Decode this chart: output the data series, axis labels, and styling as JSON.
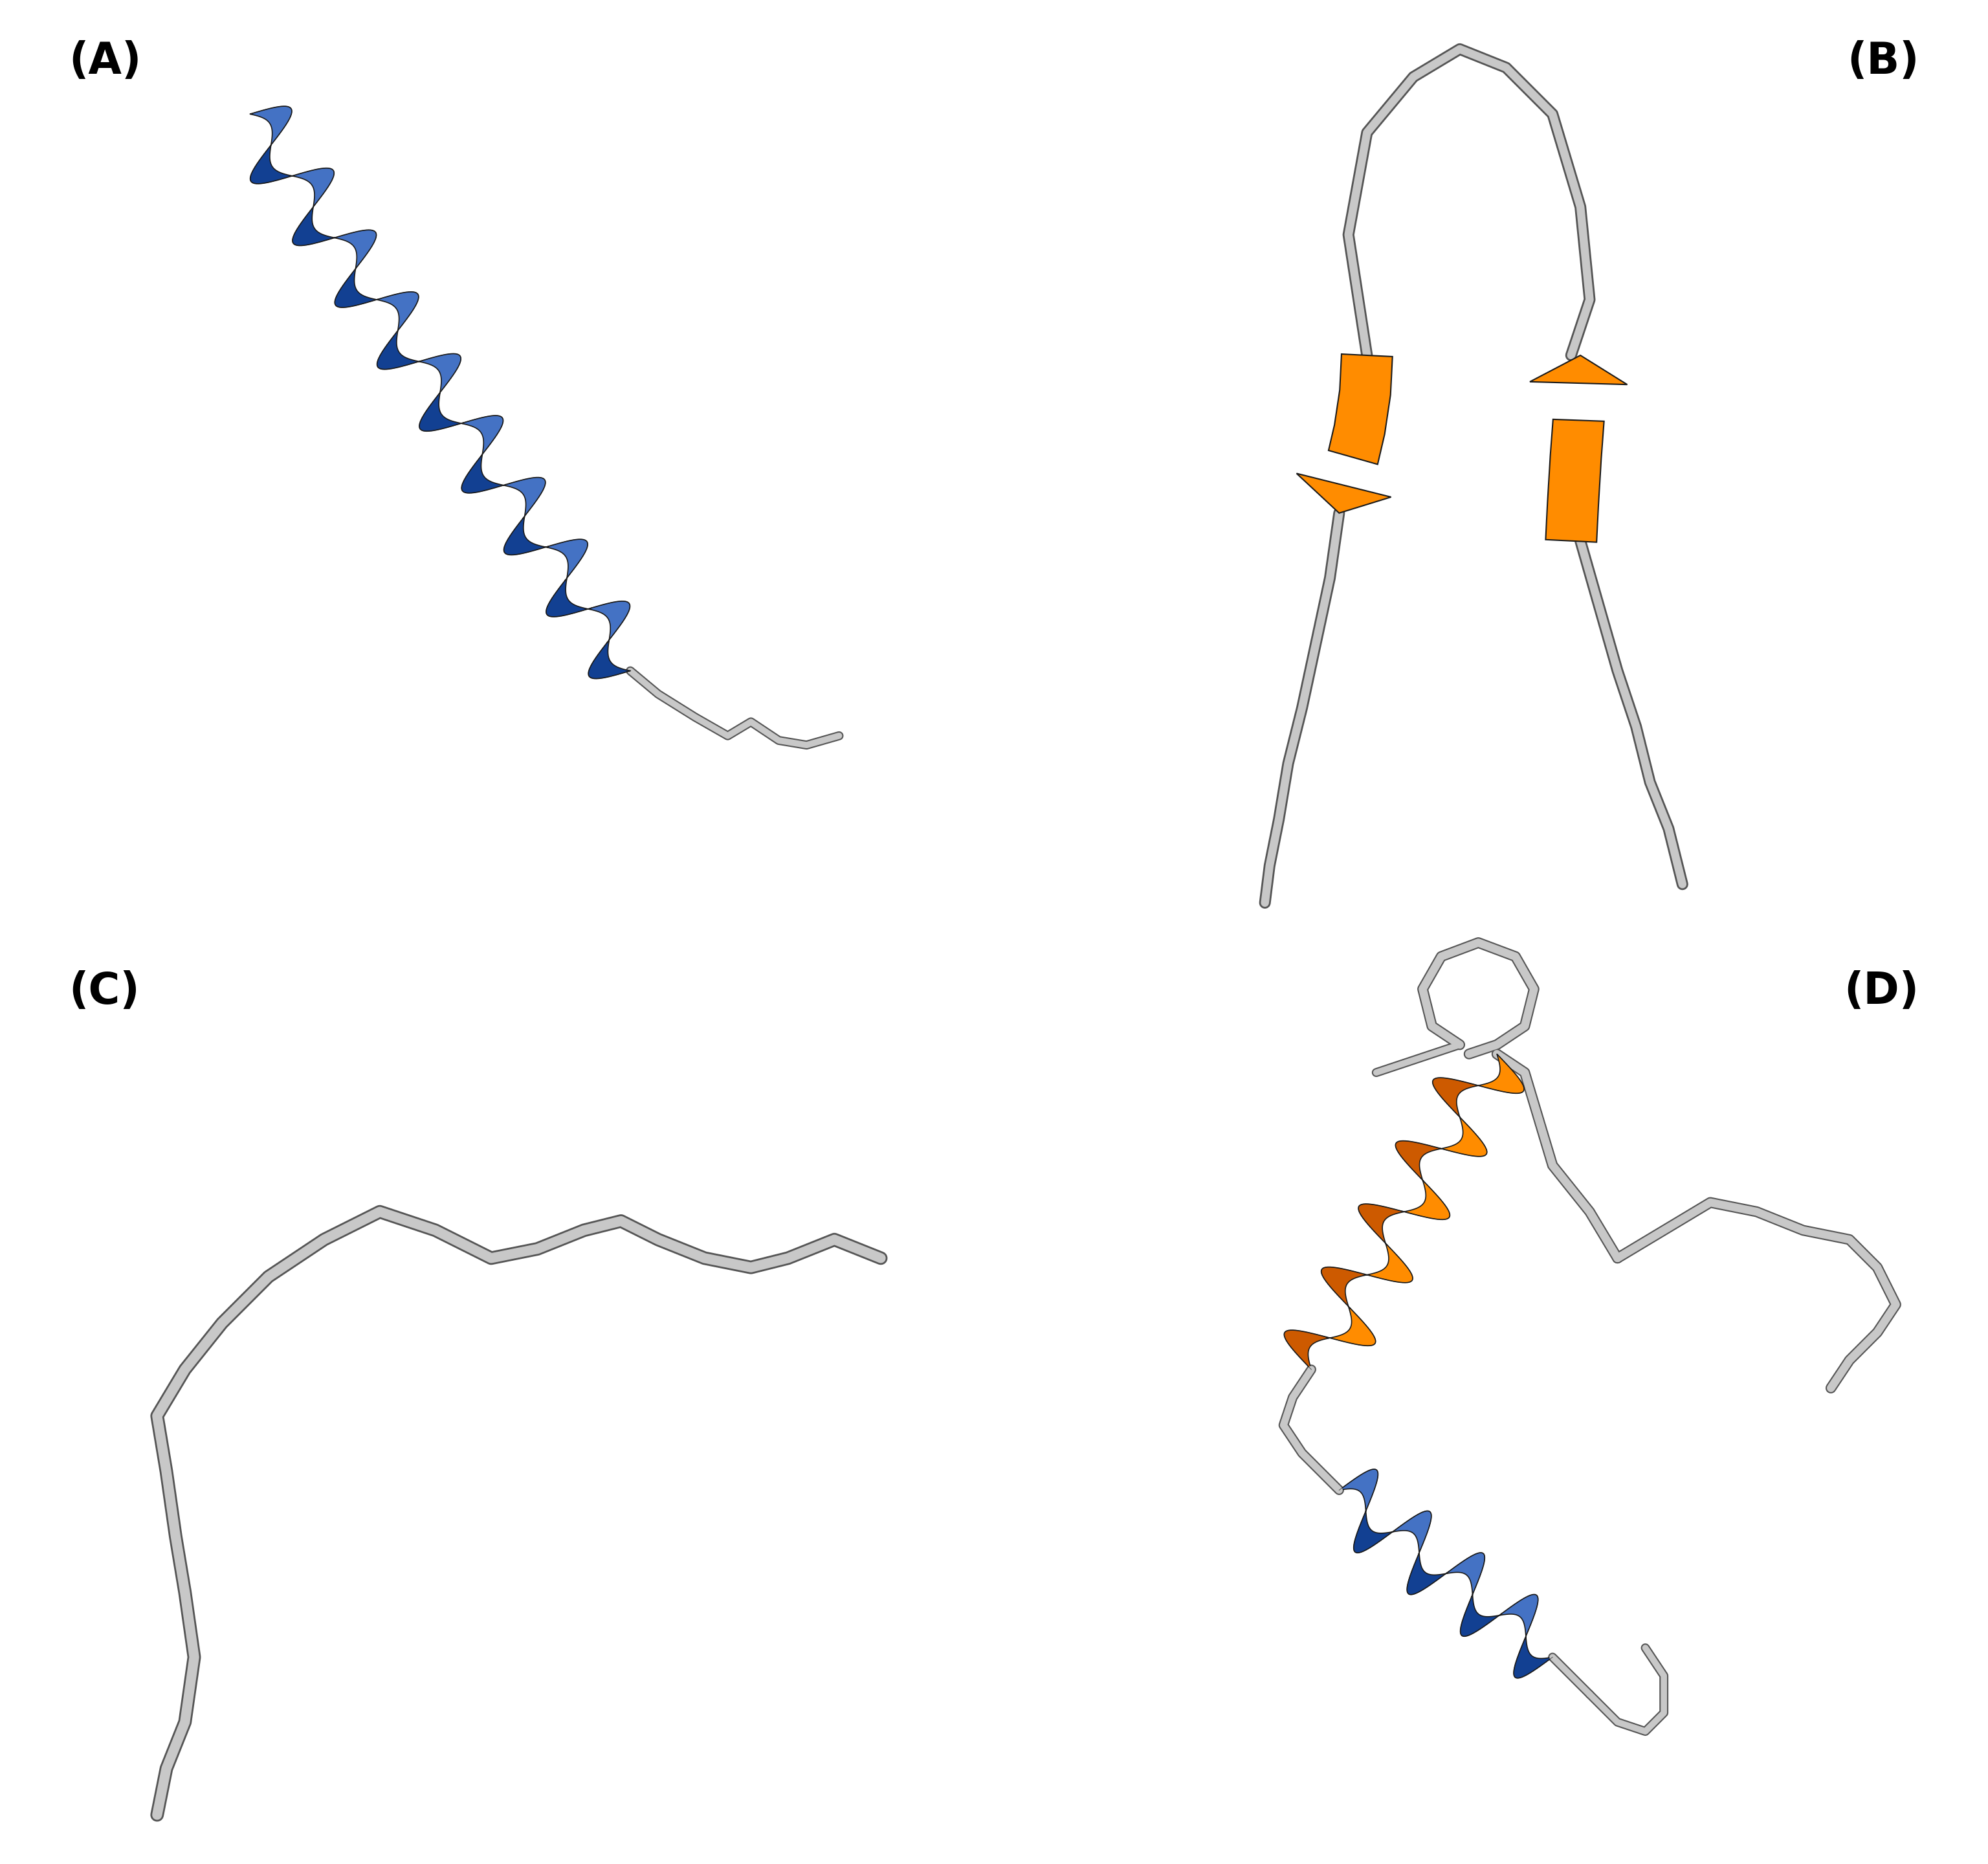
{
  "background_color": "#ffffff",
  "label_A": "(A)",
  "label_B": "(B)",
  "label_C": "(C)",
  "label_D": "(D)",
  "label_fontsize": 48,
  "label_fontweight": "bold",
  "helix_blue": "#4472C4",
  "helix_orange": "#FF8C00",
  "coil_gray_inner": "#C8C8C8",
  "coil_gray_outer": "#555555",
  "outline_color": "#1a1a1a"
}
